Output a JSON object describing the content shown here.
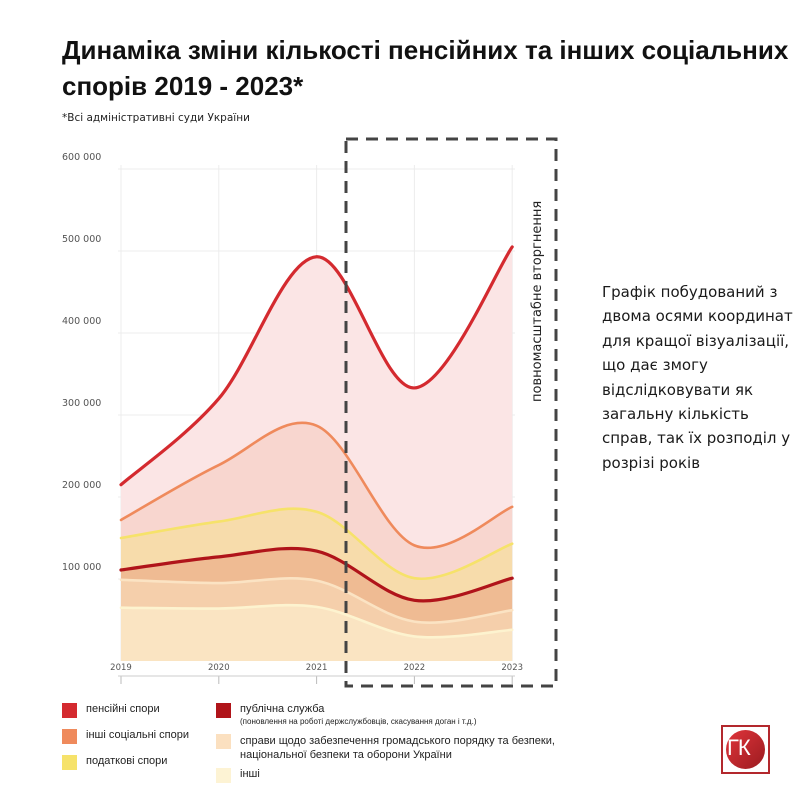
{
  "title": "Динаміка зміни кількості пенсійних та інших соціальних спорів 2019 - 2023*",
  "subtitle": "*Всі адміністративні суди України",
  "side_note": "Графік побудований з двома осями координат для кращої візуалізації, що дає змогу відслідковувати як загальну кількість справ, так їх розподіл у розрізі років",
  "invasion_label": "повномасштабне вторгнення",
  "logo_text": "ГК",
  "chart_data": {
    "type": "area",
    "x": [
      "2019",
      "2020",
      "2021",
      "2022",
      "2023"
    ],
    "yticks": [
      "100 000",
      "200 000",
      "300 000",
      "400 000",
      "500 000",
      "600 000"
    ],
    "ylim": [
      0,
      600000
    ],
    "grid": true,
    "legend_position": "bottom",
    "highlight_region": [
      "2021.3",
      "2023+"
    ],
    "series": [
      {
        "name": "пенсійні спори",
        "color": "#d42a2f",
        "fill": "#fbe5e5",
        "values": [
          215000,
          320000,
          493000,
          333000,
          505000
        ]
      },
      {
        "name": "інші соціальні спори",
        "color": "#ef8a5c",
        "fill": "#f8d6cf",
        "values": [
          172000,
          239000,
          287000,
          141000,
          188000
        ]
      },
      {
        "name": "податкові спори",
        "color": "#f6e26a",
        "fill": "#f7dcab",
        "values": [
          150000,
          170000,
          182000,
          101000,
          143000
        ]
      },
      {
        "name": "публічна служба",
        "note": "(поновлення на роботі держслужбовців, скасування доган і т.д.)",
        "color": "#b0141a",
        "fill": "#efbb93",
        "values": [
          111000,
          127000,
          134000,
          74000,
          101000
        ]
      },
      {
        "name": "справи щодо забезпечення громадського порядку та безпеки, національної безпеки та оборони України",
        "color": "#fbe3c3",
        "fill": "#f5cfab",
        "values": [
          99000,
          95000,
          98000,
          48000,
          62000
        ]
      },
      {
        "name": "інші",
        "color": "#fdf3cf",
        "fill": "#fae4c2",
        "values": [
          65000,
          64000,
          66000,
          30000,
          38000
        ]
      }
    ]
  }
}
